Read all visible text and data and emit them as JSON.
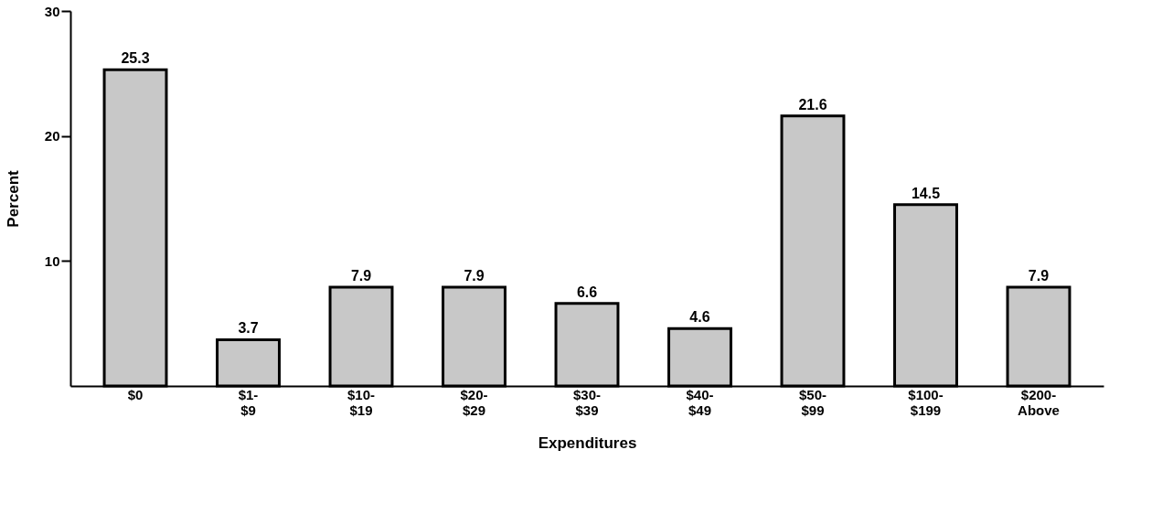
{
  "chart_data": {
    "type": "bar",
    "xlabel": "Expenditures",
    "ylabel": "Percent",
    "categories": [
      "$0",
      "$1-\n$9",
      "$10-\n$19",
      "$20-\n$29",
      "$30-\n$39",
      "$40-\n$49",
      "$50-\n$99",
      "$100-\n$199",
      "$200-\nAbove"
    ],
    "values": [
      25.3,
      3.7,
      7.9,
      7.9,
      6.6,
      4.6,
      21.6,
      14.5,
      7.9
    ],
    "color": "#c8c8c8",
    "ylim": [
      0,
      30
    ],
    "yticks": [
      10,
      20,
      30
    ],
    "grid": false,
    "data_labels": true
  }
}
